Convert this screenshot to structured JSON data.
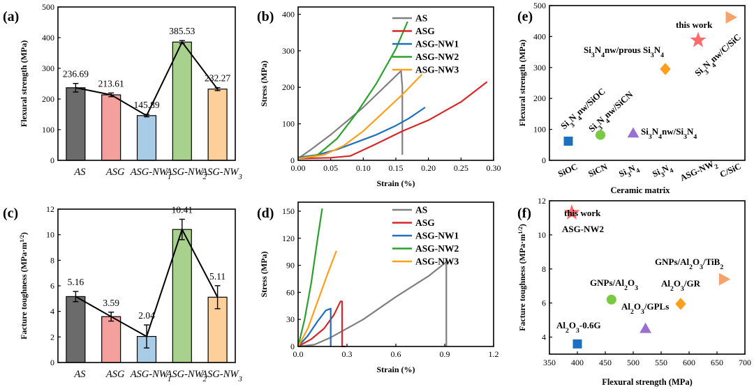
{
  "chart_data": [
    {
      "id": "a",
      "panel_label": "(a)",
      "type": "bar",
      "title": "",
      "xlabel": "",
      "ylabel": "Flexural strength (MPa)",
      "ylim": [
        0,
        500
      ],
      "yticks": [
        0,
        100,
        200,
        300,
        400,
        500
      ],
      "categories": [
        "AS",
        "ASG",
        "ASG-NW1",
        "ASG-NW2",
        "ASG-NW3"
      ],
      "values": [
        236.69,
        213.61,
        145.89,
        385.53,
        232.27
      ],
      "error": [
        14,
        6,
        4,
        5,
        5
      ],
      "value_labels": [
        "236.69",
        "213.61",
        "145.89",
        "385.53",
        "232.27"
      ],
      "connecting_line": true,
      "colors": [
        "#6b6b6b",
        "#f4a09c",
        "#a8cbe6",
        "#a9d18e",
        "#ffcf99"
      ]
    },
    {
      "id": "b",
      "panel_label": "(b)",
      "type": "line",
      "xlabel": "Strain (%)",
      "ylabel": "Stress (MPa)",
      "xlim": [
        0,
        0.3
      ],
      "ylim": [
        0,
        420
      ],
      "xticks": [
        0.0,
        0.05,
        0.1,
        0.15,
        0.2,
        0.25,
        0.3
      ],
      "xtick_labels": [
        "0.00",
        "0.05",
        "0.10",
        "0.15",
        "0.20",
        "0.25",
        "0.30"
      ],
      "yticks": [
        0,
        100,
        200,
        300,
        400
      ],
      "legend_position": "top-right",
      "series": [
        {
          "name": "AS",
          "color": "#7f7f7f",
          "x": [
            0,
            0.02,
            0.05,
            0.1,
            0.158,
            0.16,
            0.16
          ],
          "y": [
            5,
            30,
            70,
            145,
            245,
            200,
            15
          ]
        },
        {
          "name": "ASG",
          "color": "#d62728",
          "x": [
            0,
            0.05,
            0.08,
            0.12,
            0.16,
            0.2,
            0.25,
            0.29
          ],
          "y": [
            5,
            7,
            12,
            45,
            80,
            110,
            160,
            215
          ]
        },
        {
          "name": "ASG-NW1",
          "color": "#1f6fbf",
          "x": [
            0,
            0.03,
            0.06,
            0.09,
            0.12,
            0.15,
            0.17,
            0.195
          ],
          "y": [
            8,
            15,
            30,
            50,
            70,
            95,
            115,
            145
          ]
        },
        {
          "name": "ASG-NW2",
          "color": "#2ca02c",
          "x": [
            0,
            0.03,
            0.06,
            0.09,
            0.12,
            0.15,
            0.168
          ],
          "y": [
            5,
            15,
            60,
            130,
            210,
            305,
            380
          ]
        },
        {
          "name": "ASG-NW3",
          "color": "#ff9f1c",
          "x": [
            0,
            0.04,
            0.07,
            0.1,
            0.13,
            0.16,
            0.19
          ],
          "y": [
            5,
            15,
            40,
            80,
            130,
            180,
            235
          ]
        }
      ]
    },
    {
      "id": "c",
      "panel_label": "(c)",
      "type": "bar",
      "xlabel": "",
      "ylabel": "Facture toughness (MPa·m",
      "ylabel_sup": "1/2",
      "ylabel_close": ")",
      "ylim": [
        0,
        12
      ],
      "yticks": [
        0,
        2,
        4,
        6,
        8,
        10,
        12
      ],
      "categories": [
        "AS",
        "ASG",
        "ASG-NW1",
        "ASG-NW2",
        "ASG-NW3"
      ],
      "values": [
        5.16,
        3.59,
        2.04,
        10.41,
        5.11
      ],
      "error": [
        0.4,
        0.35,
        0.9,
        0.8,
        0.9
      ],
      "value_labels": [
        "5.16",
        "3.59",
        "2.04",
        "10.41",
        "5.11"
      ],
      "connecting_line": true,
      "colors": [
        "#6b6b6b",
        "#f4a09c",
        "#a8cbe6",
        "#a9d18e",
        "#ffcf99"
      ]
    },
    {
      "id": "d",
      "panel_label": "(d)",
      "type": "line",
      "xlabel": "Strain (%)",
      "ylabel": "Stress (MPa)",
      "xlim": [
        0,
        1.2
      ],
      "ylim": [
        0,
        160
      ],
      "xticks": [
        0.0,
        0.3,
        0.6,
        0.9,
        1.2
      ],
      "xtick_labels": [
        "0.0",
        "0.3",
        "0.6",
        "0.9",
        "1.2"
      ],
      "yticks": [
        0,
        30,
        60,
        90,
        120,
        150
      ],
      "legend_position": "top-right",
      "series": [
        {
          "name": "AS",
          "color": "#7f7f7f",
          "x": [
            0,
            0.1,
            0.2,
            0.4,
            0.6,
            0.8,
            0.905,
            0.91,
            0.91
          ],
          "y": [
            0,
            2,
            10,
            30,
            55,
            78,
            93,
            95,
            0
          ]
        },
        {
          "name": "ASG",
          "color": "#d62728",
          "x": [
            0,
            0.08,
            0.16,
            0.22,
            0.26,
            0.27,
            0.27,
            0.29
          ],
          "y": [
            0,
            8,
            20,
            35,
            50,
            50,
            0,
            0
          ]
        },
        {
          "name": "ASG-NW1",
          "color": "#1f6fbf",
          "x": [
            0,
            0.06,
            0.12,
            0.17,
            0.2,
            0.2
          ],
          "y": [
            0,
            12,
            28,
            40,
            42,
            0
          ]
        },
        {
          "name": "ASG-NW2",
          "color": "#2ca02c",
          "x": [
            0,
            0.04,
            0.08,
            0.12,
            0.148
          ],
          "y": [
            0,
            30,
            70,
            120,
            153
          ]
        },
        {
          "name": "ASG-NW3",
          "color": "#ff9f1c",
          "x": [
            0,
            0.06,
            0.12,
            0.18,
            0.235
          ],
          "y": [
            0,
            20,
            50,
            80,
            106
          ]
        }
      ]
    },
    {
      "id": "e",
      "panel_label": "(e)",
      "type": "scatter",
      "xlabel": "Ceramic matrix",
      "ylabel": "Flexural strength (MPa)",
      "ylim": [
        0,
        500
      ],
      "yticks": [
        0,
        100,
        200,
        300,
        400,
        500
      ],
      "categories": [
        "SiOC",
        "SiCN",
        "Si3N4",
        "Si3N4",
        "ASG-NW2",
        "C/SiC"
      ],
      "category_display": [
        {
          "base": "SiOC",
          "sub": ""
        },
        {
          "base": "SiCN",
          "sub": ""
        },
        {
          "base": "Si",
          "sub": "3",
          "rest": "N",
          "sub2": "4"
        },
        {
          "base": "Si",
          "sub": "3",
          "rest": "N",
          "sub2": "4"
        },
        {
          "base": "ASG-NW",
          "sub": "2"
        },
        {
          "base": "C/SiC",
          "sub": ""
        }
      ],
      "points": [
        {
          "label": "Si3N4nw/SiOC",
          "category": "SiOC",
          "y": 62,
          "marker": "square",
          "color": "#1f6fbf"
        },
        {
          "label": "Si3N4nw/SiCN",
          "category": "SiCN",
          "y": 82,
          "marker": "circle",
          "color": "#7ac943"
        },
        {
          "label": "Si3N4nw/Si3N4",
          "category": "Si3N4",
          "y": 88,
          "marker": "triangle-up",
          "color": "#9b6fcf"
        },
        {
          "label": "Si3N4nw/prous Si3N4",
          "category": "Si3N4",
          "y": 295,
          "marker": "diamond",
          "color": "#ff9f1c"
        },
        {
          "label": "this work",
          "category": "ASG-NW2",
          "y": 388,
          "marker": "star",
          "color": "#ff6b6b"
        },
        {
          "label": "Si3N4nw/C/SiC",
          "category": "C/SiC",
          "y": 462,
          "marker": "triangle-right",
          "color": "#f4a46b"
        }
      ],
      "annotations": [
        "Si3N4nw/SiOC",
        "Si3N4nw/SiCN",
        "Si3N4nw/Si3N4",
        "Si3N4nw/prous Si3N4",
        "this work",
        "Si3N4nw/C/SiC"
      ]
    },
    {
      "id": "f",
      "panel_label": "(f)",
      "type": "scatter",
      "xlabel": "Flexural strength (MPa)",
      "ylabel": "Facture toughness (MPa·m",
      "ylabel_sup": "1/2",
      "ylabel_close": ")",
      "xlim": [
        350,
        700
      ],
      "ylim": [
        3,
        12
      ],
      "xticks": [
        350,
        400,
        450,
        500,
        550,
        600,
        650,
        700
      ],
      "yticks": [
        4,
        6,
        8,
        10,
        12
      ],
      "points": [
        {
          "label": "this work",
          "x": 390,
          "y": 11.3,
          "marker": "star",
          "color": "#ff6b6b"
        },
        {
          "label": "Al2O3-0.6G",
          "x": 400,
          "y": 3.6,
          "marker": "square",
          "color": "#1f6fbf"
        },
        {
          "label": "GNPs/Al2O3",
          "x": 461,
          "y": 6.2,
          "marker": "circle",
          "color": "#7ac943"
        },
        {
          "label": "Al2O3/GPLs",
          "x": 522,
          "y": 4.5,
          "marker": "triangle-up",
          "color": "#9b6fcf"
        },
        {
          "label": "Al2O3/GR",
          "x": 585,
          "y": 5.95,
          "marker": "diamond",
          "color": "#ff9f1c"
        },
        {
          "label": "GNPs/Al2O3/TiB2",
          "x": 663,
          "y": 7.4,
          "marker": "triangle-right",
          "color": "#f4a46b"
        }
      ],
      "annotations": [
        "this work",
        "ASG-NW2",
        "Al2O3-0.6G",
        "GNPs/Al2O3",
        "Al2O3/GPLs",
        "Al2O3/GR",
        "GNPs/Al2O3/TiB2"
      ]
    }
  ]
}
